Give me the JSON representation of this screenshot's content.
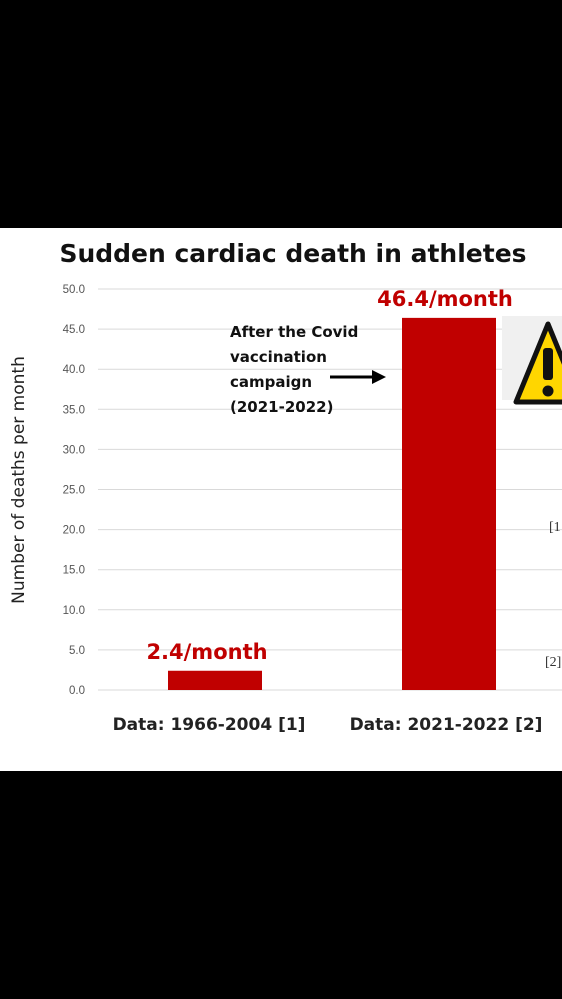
{
  "chart_data": {
    "type": "bar",
    "title": "Sudden cardiac death in athletes",
    "ylabel": "Number of deaths per month",
    "xlabel": "",
    "categories": [
      "Data: 1966-2004 [1]",
      "Data: 2021-2022 [2]"
    ],
    "values": [
      2.4,
      46.4
    ],
    "data_labels": [
      "2.4/month",
      "46.4/month"
    ],
    "ylim": [
      0,
      50
    ],
    "yticks": [
      "0.0",
      "5.0",
      "10.0",
      "15.0",
      "20.0",
      "25.0",
      "30.0",
      "35.0",
      "40.0",
      "45.0",
      "50.0"
    ],
    "grid": true,
    "bar_color": "#c00000",
    "annotation": {
      "lines": [
        "After the Covid",
        "vaccination",
        "campaign",
        "(2021-2022)"
      ]
    },
    "side_refs": [
      "[1",
      "[2]"
    ],
    "side_icon": "warning-icon"
  }
}
